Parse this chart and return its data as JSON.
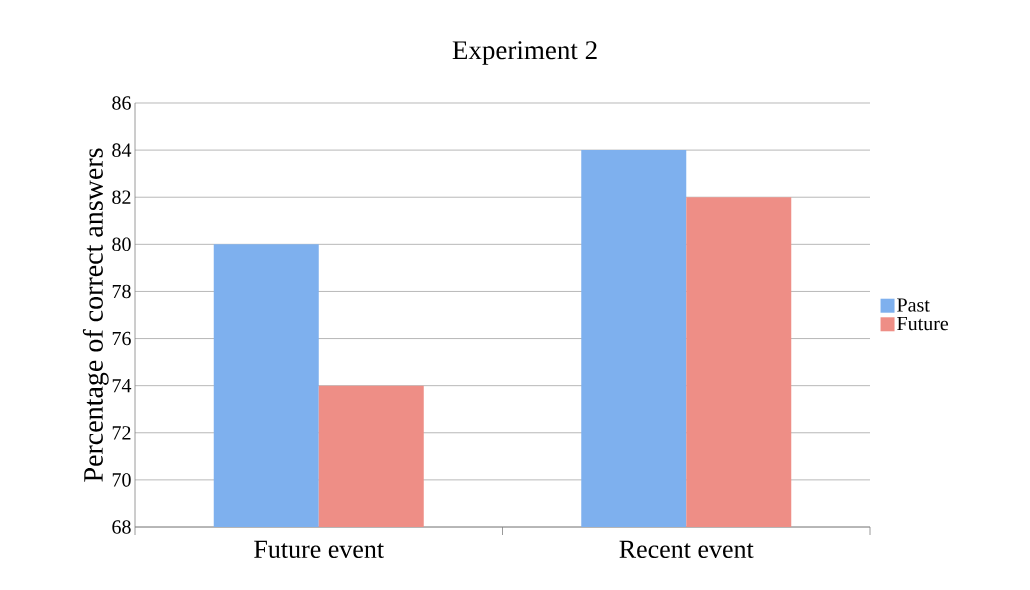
{
  "chart_data": {
    "type": "bar",
    "title": "Experiment 2",
    "ylabel": "Percentage of correct answers",
    "categories": [
      "Future event",
      "Recent event"
    ],
    "series": [
      {
        "name": "Past",
        "color": "#7eb0ee",
        "values": [
          80,
          84
        ]
      },
      {
        "name": "Future",
        "color": "#ee8e86",
        "values": [
          74,
          82
        ]
      }
    ],
    "ylim": [
      68,
      86
    ],
    "yticks": [
      68,
      70,
      72,
      74,
      76,
      78,
      80,
      82,
      84,
      86
    ],
    "grid": "y",
    "legend": "right"
  }
}
